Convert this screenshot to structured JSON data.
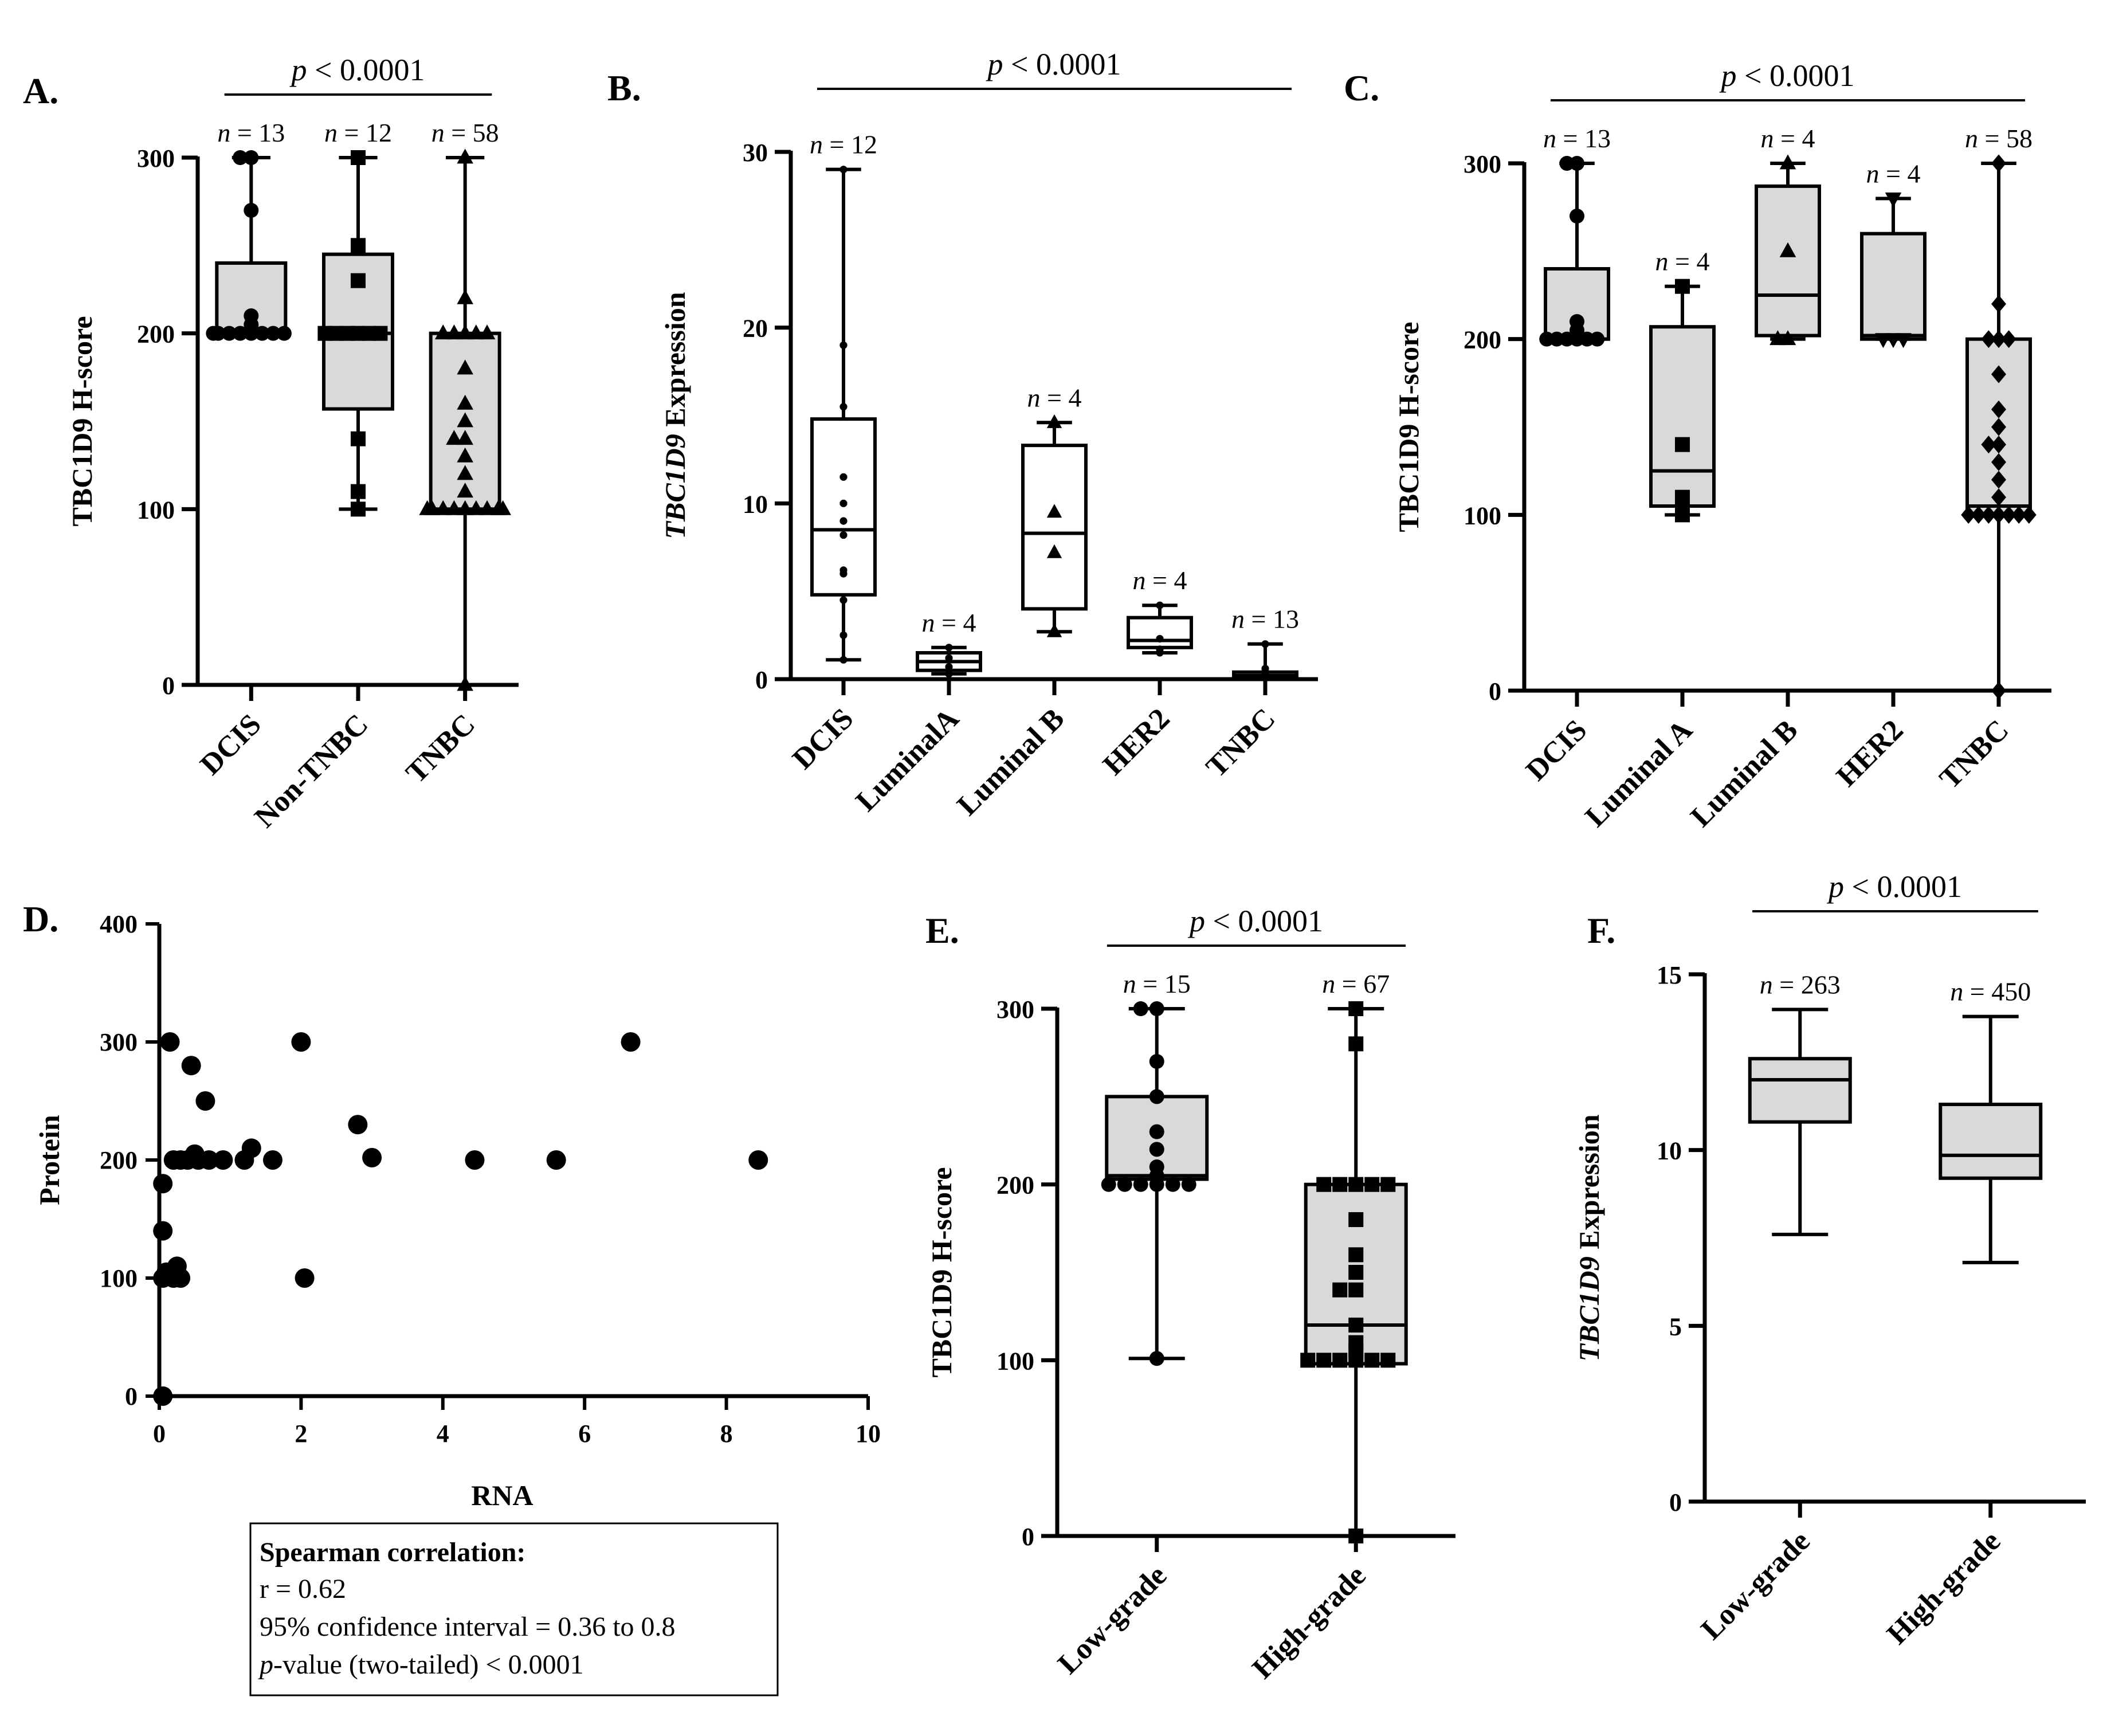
{
  "chart_data": [
    {
      "id": "A",
      "type": "box",
      "panel_label": "A.",
      "ylabel": "TBC1D9 H-score",
      "ylabel_italic": "",
      "ylim": [
        0,
        300
      ],
      "yticks": [
        "0",
        "100",
        "200",
        "300"
      ],
      "p_text": "p",
      "p_rest": " < 0.0001",
      "p_span": [
        0,
        2
      ],
      "categories": [
        {
          "label": "DCIS",
          "n": "n",
          "n_rest": " = 13",
          "marker": "circle",
          "box": {
            "min": 200,
            "q1": 200,
            "median": 200,
            "q3": 240,
            "max": 300
          },
          "points": [
            300,
            300,
            270,
            210,
            205,
            200,
            200,
            200,
            200,
            200,
            200,
            200,
            200
          ]
        },
        {
          "label": "Non-TNBC",
          "n": "n",
          "n_rest": " = 12",
          "marker": "square",
          "box": {
            "min": 100,
            "q1": 157,
            "median": 200,
            "q3": 245,
            "max": 300
          },
          "points": [
            300,
            250,
            230,
            200,
            200,
            200,
            200,
            200,
            200,
            140,
            110,
            100
          ]
        },
        {
          "label": "TNBC",
          "n": "n",
          "n_rest": " = 58",
          "marker": "triangle",
          "box": {
            "min": 0,
            "q1": 100,
            "median": 100,
            "q3": 200,
            "max": 300
          },
          "points": [
            300,
            220,
            200,
            200,
            200,
            200,
            200,
            180,
            160,
            150,
            140,
            140,
            130,
            120,
            110,
            100,
            100,
            100,
            100,
            100,
            100,
            100,
            100,
            100,
            0
          ]
        }
      ]
    },
    {
      "id": "B",
      "type": "box",
      "panel_label": "B.",
      "ylabel": " Expression",
      "ylabel_italic": "TBC1D9",
      "ylim": [
        0,
        30
      ],
      "yticks": [
        "0",
        "10",
        "20",
        "30"
      ],
      "p_text": "p",
      "p_rest": " < 0.0001",
      "p_span": [
        0,
        4
      ],
      "categories": [
        {
          "label": "DCIS",
          "n": "n",
          "n_rest": " = 12",
          "marker": "dot",
          "filled": false,
          "box": {
            "min": 1.1,
            "q1": 4.8,
            "median": 8.5,
            "q3": 14.8,
            "max": 29
          },
          "points": [
            29,
            19,
            15.5,
            11.5,
            10,
            9,
            8.2,
            6.2,
            6,
            4.5,
            2.5,
            1.1
          ]
        },
        {
          "label": "LuminalA",
          "n": "n",
          "n_rest": " = 4",
          "marker": "dot",
          "filled": false,
          "box": {
            "min": 0.3,
            "q1": 0.5,
            "median": 1.0,
            "q3": 1.5,
            "max": 1.8
          },
          "points": [
            1.8,
            1.2,
            0.7,
            0.3
          ]
        },
        {
          "label": "Luminal B",
          "n": "n",
          "n_rest": " = 4",
          "marker": "triangle",
          "filled": false,
          "box": {
            "min": 2.7,
            "q1": 4.0,
            "median": 8.3,
            "q3": 13.3,
            "max": 14.6
          },
          "points": [
            14.6,
            9.5,
            7.2,
            2.7
          ]
        },
        {
          "label": "HER2",
          "n": "n",
          "n_rest": " = 4",
          "marker": "dot",
          "filled": false,
          "box": {
            "min": 1.5,
            "q1": 1.8,
            "median": 2.2,
            "q3": 3.5,
            "max": 4.2
          },
          "points": [
            4.2,
            2.3,
            1.7,
            1.5
          ]
        },
        {
          "label": "TNBC",
          "n": "n",
          "n_rest": " = 13",
          "marker": "dot",
          "filled": false,
          "box": {
            "min": 0.05,
            "q1": 0.1,
            "median": 0.2,
            "q3": 0.4,
            "max": 2.0
          },
          "points": [
            2.0,
            0.6,
            0.3,
            0.2,
            0.1
          ]
        }
      ]
    },
    {
      "id": "C",
      "type": "box",
      "panel_label": "C.",
      "ylabel": "TBC1D9 H-score",
      "ylabel_italic": "",
      "ylim": [
        0,
        300
      ],
      "yticks": [
        "0",
        "100",
        "200",
        "300"
      ],
      "p_text": "p",
      "p_rest": " < 0.0001",
      "p_span": [
        0,
        4
      ],
      "categories": [
        {
          "label": "DCIS",
          "n": "n",
          "n_rest": " = 13",
          "marker": "circle",
          "filled": true,
          "box": {
            "min": 200,
            "q1": 200,
            "median": 200,
            "q3": 240,
            "max": 300
          },
          "points": [
            300,
            300,
            270,
            210,
            205,
            200,
            200,
            200,
            200,
            200,
            200
          ]
        },
        {
          "label": "Luminal A",
          "n": "n",
          "n_rest": " = 4",
          "marker": "square",
          "filled": true,
          "box": {
            "min": 100,
            "q1": 105,
            "median": 125,
            "q3": 207,
            "max": 230
          },
          "points": [
            230,
            140,
            110,
            100
          ]
        },
        {
          "label": "Luminal B",
          "n": "n",
          "n_rest": " = 4",
          "marker": "triangle",
          "filled": true,
          "box": {
            "min": 200,
            "q1": 202,
            "median": 225,
            "q3": 287,
            "max": 300
          },
          "points": [
            300,
            250,
            200,
            200
          ]
        },
        {
          "label": "HER2",
          "n": "n",
          "n_rest": " = 4",
          "marker": "nabla",
          "filled": true,
          "box": {
            "min": 200,
            "q1": 200,
            "median": 202,
            "q3": 260,
            "max": 280
          },
          "points": [
            280,
            200,
            200,
            200
          ]
        },
        {
          "label": "TNBC",
          "n": "n",
          "n_rest": " = 58",
          "marker": "diamond",
          "filled": true,
          "box": {
            "min": 0,
            "q1": 100,
            "median": 105,
            "q3": 200,
            "max": 300
          },
          "points": [
            300,
            220,
            200,
            200,
            200,
            180,
            160,
            150,
            140,
            140,
            130,
            120,
            110,
            100,
            100,
            100,
            100,
            100,
            100,
            100,
            0
          ]
        }
      ]
    },
    {
      "id": "D",
      "type": "scatter",
      "panel_label": "D.",
      "xlabel": "RNA",
      "ylabel": "Protein",
      "xlim": [
        0,
        10
      ],
      "ylim": [
        0,
        400
      ],
      "xticks": [
        "0",
        "2",
        "4",
        "6",
        "8",
        "10"
      ],
      "yticks": [
        "0",
        "100",
        "200",
        "300",
        "400"
      ],
      "points": [
        [
          0.05,
          0
        ],
        [
          0.05,
          100
        ],
        [
          0.05,
          140
        ],
        [
          0.05,
          180
        ],
        [
          0.1,
          105
        ],
        [
          0.15,
          300
        ],
        [
          0.2,
          100
        ],
        [
          0.2,
          200
        ],
        [
          0.25,
          110
        ],
        [
          0.3,
          100
        ],
        [
          0.3,
          200
        ],
        [
          0.4,
          200
        ],
        [
          0.45,
          280
        ],
        [
          0.5,
          205
        ],
        [
          0.55,
          200
        ],
        [
          0.65,
          250
        ],
        [
          0.7,
          200
        ],
        [
          0.9,
          200
        ],
        [
          1.2,
          200
        ],
        [
          1.3,
          210
        ],
        [
          1.6,
          200
        ],
        [
          2.0,
          300
        ],
        [
          2.05,
          100
        ],
        [
          2.8,
          230
        ],
        [
          3.0,
          202
        ],
        [
          4.45,
          200
        ],
        [
          5.6,
          200
        ],
        [
          6.65,
          300
        ],
        [
          8.45,
          200
        ]
      ],
      "legend": {
        "title": "Spearman correlation:",
        "r": "r = 0.62",
        "ci": "95% confidence interval = 0.36 to 0.8",
        "p_italic": "p",
        "p_rest": "-value (two-tailed) < 0.0001"
      }
    },
    {
      "id": "E",
      "type": "box",
      "panel_label": "E.",
      "ylabel": "TBC1D9 H-score",
      "ylabel_italic": "",
      "ylim": [
        0,
        300
      ],
      "yticks": [
        "0",
        "100",
        "200",
        "300"
      ],
      "p_text": "p",
      "p_rest": " < 0.0001",
      "p_span": [
        0,
        1
      ],
      "categories": [
        {
          "label": "Low-grade",
          "n": "n",
          "n_rest": " = 15",
          "marker": "circle",
          "filled": true,
          "box": {
            "min": 101,
            "q1": 203,
            "median": 205,
            "q3": 250,
            "max": 300
          },
          "points": [
            300,
            300,
            270,
            250,
            230,
            220,
            210,
            205,
            200,
            200,
            200,
            200,
            200,
            200,
            101
          ]
        },
        {
          "label": "High-grade",
          "n": "n",
          "n_rest": " = 67",
          "marker": "square",
          "filled": true,
          "box": {
            "min": 0,
            "q1": 98,
            "median": 120,
            "q3": 200,
            "max": 300
          },
          "points": [
            300,
            280,
            200,
            200,
            200,
            200,
            200,
            180,
            160,
            150,
            140,
            140,
            120,
            110,
            105,
            100,
            100,
            100,
            100,
            100,
            100,
            0
          ]
        }
      ]
    },
    {
      "id": "F",
      "type": "box",
      "panel_label": "F.",
      "ylabel": " Expression",
      "ylabel_italic": "TBC1D9",
      "ylim": [
        0,
        15
      ],
      "yticks": [
        "0",
        "5",
        "10",
        "15"
      ],
      "p_text": "p",
      "p_rest": " < 0.0001",
      "p_span": [
        0,
        1
      ],
      "categories": [
        {
          "label": "Low-grade",
          "n": "n",
          "n_rest": " = 263",
          "marker": "none",
          "box": {
            "min": 7.6,
            "q1": 10.8,
            "median": 12.0,
            "q3": 12.6,
            "max": 14.0
          },
          "points": []
        },
        {
          "label": "High-grade",
          "n": "n",
          "n_rest": " = 450",
          "marker": "none",
          "box": {
            "min": 6.8,
            "q1": 9.2,
            "median": 9.85,
            "q3": 11.3,
            "max": 13.8
          },
          "points": []
        }
      ]
    }
  ]
}
